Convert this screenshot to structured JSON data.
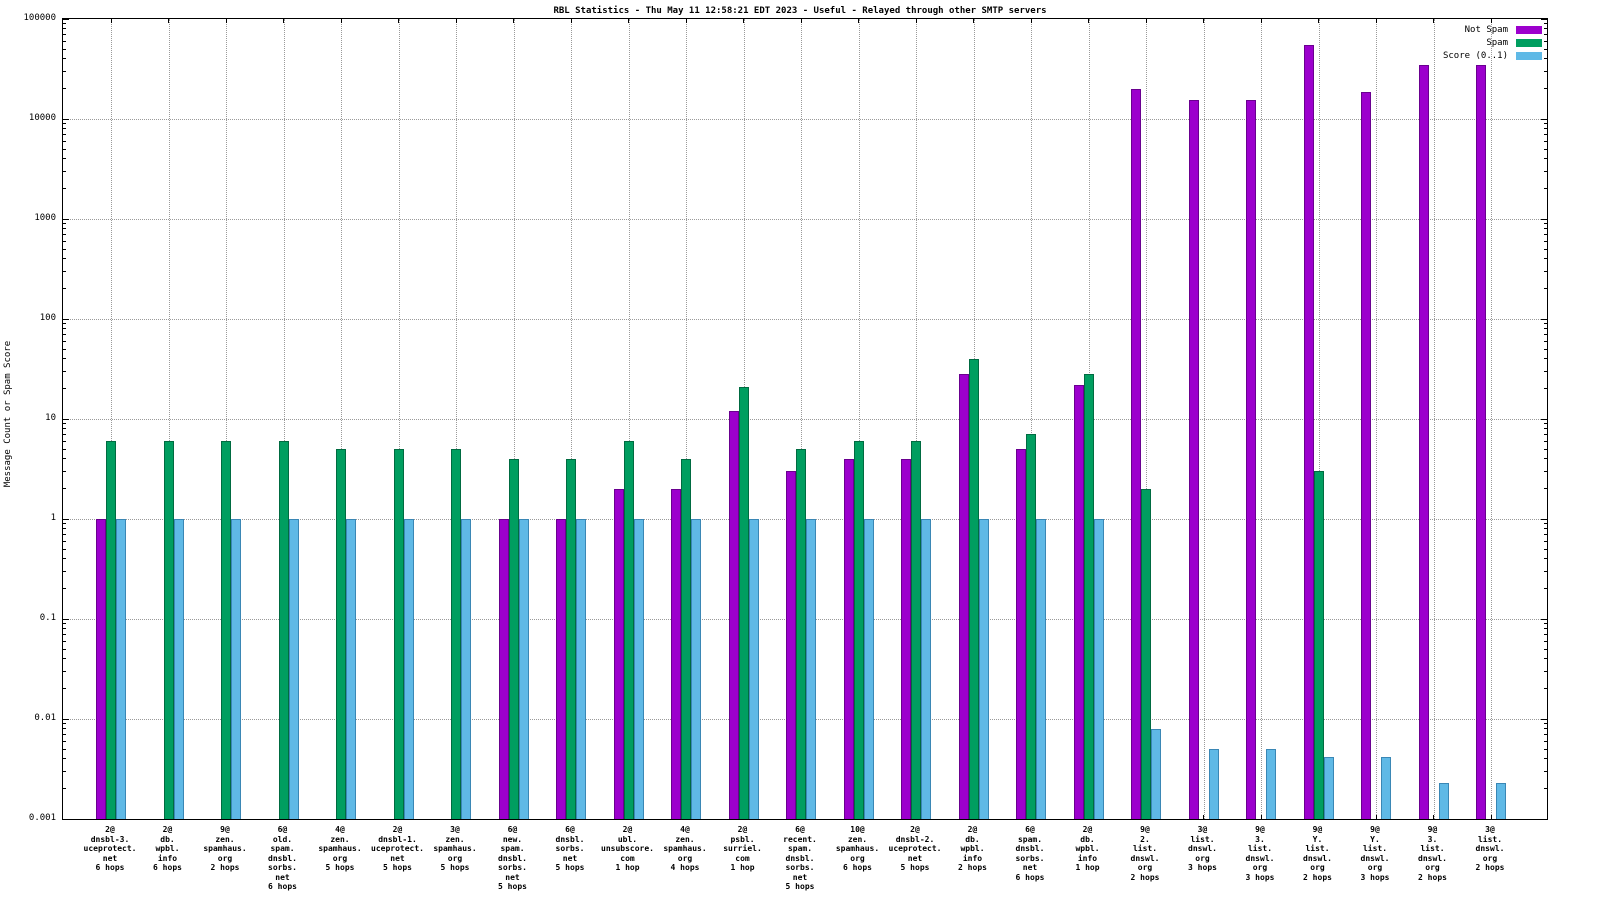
{
  "title": "RBL Statistics - Thu May 11 12:58:21 EDT 2023 - Useful - Relayed through other SMTP servers",
  "ylabel": "Message Count or Spam Score",
  "legend": {
    "entries": [
      {
        "label": "Not Spam",
        "color": "#9c00cd"
      },
      {
        "label": "Spam",
        "color": "#009e60"
      },
      {
        "label": "Score (0..1)",
        "color": "#5fb9e6"
      }
    ]
  },
  "chart_data": {
    "type": "bar",
    "scale": "log",
    "ylim": [
      0.001,
      100000
    ],
    "grid": true,
    "legend_position": "top-right",
    "yticks": [
      {
        "label": "100000",
        "value": 100000
      },
      {
        "label": "10000",
        "value": 10000
      },
      {
        "label": "1000",
        "value": 1000
      },
      {
        "label": "100",
        "value": 100
      },
      {
        "label": "10",
        "value": 10
      },
      {
        "label": "1",
        "value": 1
      },
      {
        "label": "0.1",
        "value": 0.1
      },
      {
        "label": "0.01",
        "value": 0.01
      },
      {
        "label": "0.001",
        "value": 0.001
      }
    ],
    "categories": [
      "2@\ndnsbl-3.\nuceprotect.\nnet\n6 hops",
      "2@\ndb.\nwpbl.\ninfo\n6 hops",
      "9@\nzen.\nspamhaus.\norg\n2 hops",
      "6@\nold.\nspam.\ndnsbl.\nsorbs.\nnet\n6 hops",
      "4@\nzen.\nspamhaus.\norg\n5 hops",
      "2@\ndnsbl-1.\nuceprotect.\nnet\n5 hops",
      "3@\nzen.\nspamhaus.\norg\n5 hops",
      "6@\nnew.\nspam.\ndnsbl.\nsorbs.\nnet\n5 hops",
      "6@\ndnsbl.\nsorbs.\nnet\n5 hops",
      "2@\nubl.\nunsubscore.\ncom\n1 hop",
      "4@\nzen.\nspamhaus.\norg\n4 hops",
      "2@\npsbl.\nsurriel.\ncom\n1 hop",
      "6@\nrecent.\nspam.\ndnsbl.\nsorbs.\nnet\n5 hops",
      "10@\nzen.\nspamhaus.\norg\n6 hops",
      "2@\ndnsbl-2.\nuceprotect.\nnet\n5 hops",
      "2@\ndb.\nwpbl.\ninfo\n2 hops",
      "6@\nspam.\ndnsbl.\nsorbs.\nnet\n6 hops",
      "2@\ndb.\nwpbl.\ninfo\n1 hop",
      "9@\n2.\nlist.\ndnswl.\norg\n2 hops",
      "3@\nlist.\ndnswl.\norg\n3 hops",
      "9@\n3.\nlist.\ndnswl.\norg\n3 hops",
      "9@\nY.\nlist.\ndnswl.\norg\n2 hops",
      "9@\nY.\nlist.\ndnswl.\norg\n3 hops",
      "9@\n3.\nlist.\ndnswl.\norg\n2 hops",
      "3@\nlist.\ndnswl.\norg\n2 hops"
    ],
    "series": [
      {
        "name": "Not Spam",
        "color": "#9c00cd",
        "border": "#6a0090",
        "values": [
          1,
          null,
          null,
          null,
          null,
          null,
          null,
          1,
          1,
          2,
          2,
          12,
          3,
          4,
          4,
          28,
          5,
          22,
          20000,
          15500,
          15500,
          55000,
          18500,
          35000,
          35000
        ]
      },
      {
        "name": "Spam",
        "color": "#009e60",
        "border": "#006b41",
        "values": [
          6,
          6,
          6,
          6,
          5,
          5,
          5,
          4,
          4,
          6,
          4,
          21,
          5,
          6,
          6,
          40,
          7,
          28,
          2,
          null,
          null,
          3,
          null,
          null,
          null
        ]
      },
      {
        "name": "Score (0..1)",
        "color": "#5fb9e6",
        "border": "#3a87b5",
        "values": [
          1,
          1,
          1,
          1,
          1,
          1,
          1,
          1,
          1,
          1,
          1,
          1,
          1,
          1,
          1,
          1,
          1,
          1,
          0.008,
          0.005,
          0.005,
          0.0042,
          0.0042,
          0.0023,
          0.0023
        ]
      }
    ]
  }
}
